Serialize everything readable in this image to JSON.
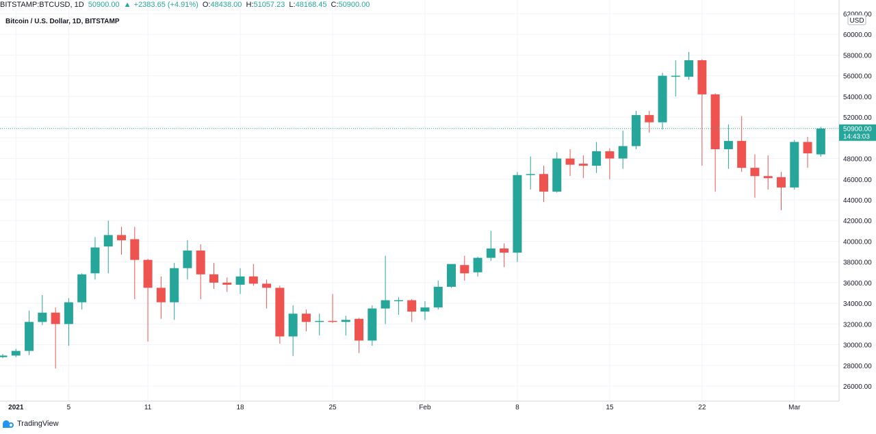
{
  "header": {
    "symbol": "BITSTAMP:BTCUSD, 1D",
    "last": "50900.00",
    "change_arrow": "▲",
    "change": "+2383.65 (+4.91%)",
    "o_label": "O:",
    "o": "48438.00",
    "h_label": "H:",
    "h": "51057.23",
    "l_label": "L:",
    "l": "48168.45",
    "c_label": "C:",
    "c": "50900.00"
  },
  "subtitle": "Bitcoin / U.S. Dollar, 1D, BITSTAMP",
  "currency_label": "USD",
  "price_tag": {
    "price": "50900.00",
    "countdown": "14:43:03"
  },
  "brand": "TradingView",
  "colors": {
    "up": "#26a69a",
    "down": "#ef5350",
    "grid": "#f0f3fa",
    "last_line": "#26a69a"
  },
  "chart_data": {
    "type": "candlestick",
    "title": "Bitcoin / U.S. Dollar, 1D, BITSTAMP",
    "ylim": [
      25000,
      62000
    ],
    "y_ticks": [
      26000,
      28000,
      30000,
      32000,
      34000,
      36000,
      38000,
      40000,
      42000,
      44000,
      46000,
      48000,
      50000,
      52000,
      54000,
      56000,
      58000,
      60000,
      62000
    ],
    "y_tick_labels": [
      "26000.00",
      "28000.00",
      "30000.00",
      "32000.00",
      "34000.00",
      "36000.00",
      "38000.00",
      "40000.00",
      "42000.00",
      "44000.00",
      "46000.00",
      "48000.00",
      "50000.00",
      "52000.00",
      "54000.00",
      "56000.00",
      "58000.00",
      "60000.00",
      "62000.00"
    ],
    "x_tick_labels": [
      {
        "index": 1,
        "label": "2021"
      },
      {
        "index": 5,
        "label": "5"
      },
      {
        "index": 11,
        "label": "11"
      },
      {
        "index": 18,
        "label": "18"
      },
      {
        "index": 25,
        "label": "25"
      },
      {
        "index": 32,
        "label": "Feb"
      },
      {
        "index": 39,
        "label": "8"
      },
      {
        "index": 46,
        "label": "15"
      },
      {
        "index": 53,
        "label": "22"
      },
      {
        "index": 60,
        "label": "Mar"
      }
    ],
    "last_price": 50900,
    "grid": true,
    "candles": [
      {
        "o": 28800,
        "h": 29100,
        "l": 28700,
        "c": 28950
      },
      {
        "o": 28950,
        "h": 29600,
        "l": 28800,
        "c": 29400
      },
      {
        "o": 29400,
        "h": 33300,
        "l": 29000,
        "c": 32200
      },
      {
        "o": 32200,
        "h": 34800,
        "l": 31900,
        "c": 33100
      },
      {
        "o": 33100,
        "h": 33600,
        "l": 27700,
        "c": 32000
      },
      {
        "o": 32000,
        "h": 34500,
        "l": 29900,
        "c": 34100
      },
      {
        "o": 34100,
        "h": 36900,
        "l": 33400,
        "c": 36800
      },
      {
        "o": 36900,
        "h": 40400,
        "l": 36300,
        "c": 39400
      },
      {
        "o": 39500,
        "h": 42000,
        "l": 36900,
        "c": 40600
      },
      {
        "o": 40600,
        "h": 41400,
        "l": 38700,
        "c": 40100
      },
      {
        "o": 40200,
        "h": 41400,
        "l": 34400,
        "c": 38200
      },
      {
        "o": 38200,
        "h": 38300,
        "l": 30300,
        "c": 35500
      },
      {
        "o": 35500,
        "h": 36600,
        "l": 32500,
        "c": 34100
      },
      {
        "o": 34100,
        "h": 37900,
        "l": 32400,
        "c": 37400
      },
      {
        "o": 37400,
        "h": 40100,
        "l": 36300,
        "c": 39100
      },
      {
        "o": 39100,
        "h": 39700,
        "l": 34400,
        "c": 36800
      },
      {
        "o": 36800,
        "h": 37900,
        "l": 35400,
        "c": 36000
      },
      {
        "o": 36000,
        "h": 36500,
        "l": 35100,
        "c": 35800
      },
      {
        "o": 35800,
        "h": 37400,
        "l": 34900,
        "c": 36600
      },
      {
        "o": 36600,
        "h": 37800,
        "l": 35700,
        "c": 35900
      },
      {
        "o": 35900,
        "h": 36300,
        "l": 33500,
        "c": 35500
      },
      {
        "o": 35500,
        "h": 35700,
        "l": 30100,
        "c": 30800
      },
      {
        "o": 30800,
        "h": 33800,
        "l": 28900,
        "c": 33000
      },
      {
        "o": 33000,
        "h": 33400,
        "l": 31300,
        "c": 32200
      },
      {
        "o": 32200,
        "h": 33000,
        "l": 30900,
        "c": 32300
      },
      {
        "o": 32300,
        "h": 34900,
        "l": 32100,
        "c": 32200
      },
      {
        "o": 32200,
        "h": 32800,
        "l": 30900,
        "c": 32400
      },
      {
        "o": 32500,
        "h": 32600,
        "l": 29200,
        "c": 30400
      },
      {
        "o": 30400,
        "h": 33800,
        "l": 29900,
        "c": 33500
      },
      {
        "o": 33500,
        "h": 38600,
        "l": 32000,
        "c": 34300
      },
      {
        "o": 34300,
        "h": 34600,
        "l": 32900,
        "c": 34300
      },
      {
        "o": 34300,
        "h": 34400,
        "l": 32200,
        "c": 33200
      },
      {
        "o": 33200,
        "h": 34200,
        "l": 32400,
        "c": 33600
      },
      {
        "o": 33600,
        "h": 36200,
        "l": 33400,
        "c": 35600
      },
      {
        "o": 35600,
        "h": 37800,
        "l": 35500,
        "c": 37800
      },
      {
        "o": 37700,
        "h": 38600,
        "l": 36200,
        "c": 36900
      },
      {
        "o": 37000,
        "h": 38500,
        "l": 36600,
        "c": 38400
      },
      {
        "o": 38400,
        "h": 41000,
        "l": 38100,
        "c": 39300
      },
      {
        "o": 39300,
        "h": 39800,
        "l": 37500,
        "c": 38900
      },
      {
        "o": 38900,
        "h": 46700,
        "l": 38000,
        "c": 46400
      },
      {
        "o": 46400,
        "h": 48200,
        "l": 45000,
        "c": 46500
      },
      {
        "o": 46500,
        "h": 47300,
        "l": 43800,
        "c": 44800
      },
      {
        "o": 44800,
        "h": 48600,
        "l": 44700,
        "c": 48000
      },
      {
        "o": 48000,
        "h": 48900,
        "l": 46300,
        "c": 47400
      },
      {
        "o": 47500,
        "h": 48300,
        "l": 46100,
        "c": 47300
      },
      {
        "o": 47300,
        "h": 49600,
        "l": 46600,
        "c": 48700
      },
      {
        "o": 48700,
        "h": 49000,
        "l": 46000,
        "c": 48000
      },
      {
        "o": 48000,
        "h": 50700,
        "l": 47000,
        "c": 49200
      },
      {
        "o": 49200,
        "h": 52600,
        "l": 48900,
        "c": 52200
      },
      {
        "o": 52200,
        "h": 52600,
        "l": 50500,
        "c": 51500
      },
      {
        "o": 51500,
        "h": 56300,
        "l": 50800,
        "c": 56000
      },
      {
        "o": 56000,
        "h": 57500,
        "l": 54000,
        "c": 56000
      },
      {
        "o": 55900,
        "h": 58300,
        "l": 55600,
        "c": 57500
      },
      {
        "o": 57500,
        "h": 57600,
        "l": 47300,
        "c": 54200
      },
      {
        "o": 54200,
        "h": 54300,
        "l": 44800,
        "c": 48900
      },
      {
        "o": 48900,
        "h": 51300,
        "l": 47000,
        "c": 49700
      },
      {
        "o": 49700,
        "h": 52100,
        "l": 46700,
        "c": 47100
      },
      {
        "o": 47100,
        "h": 48400,
        "l": 44200,
        "c": 46300
      },
      {
        "o": 46300,
        "h": 48300,
        "l": 45000,
        "c": 46100
      },
      {
        "o": 46200,
        "h": 46700,
        "l": 43000,
        "c": 45200
      },
      {
        "o": 45200,
        "h": 49800,
        "l": 45000,
        "c": 49600
      },
      {
        "o": 49600,
        "h": 50100,
        "l": 47100,
        "c": 48500
      },
      {
        "o": 48400,
        "h": 51057.23,
        "l": 48168.45,
        "c": 50900
      }
    ]
  }
}
